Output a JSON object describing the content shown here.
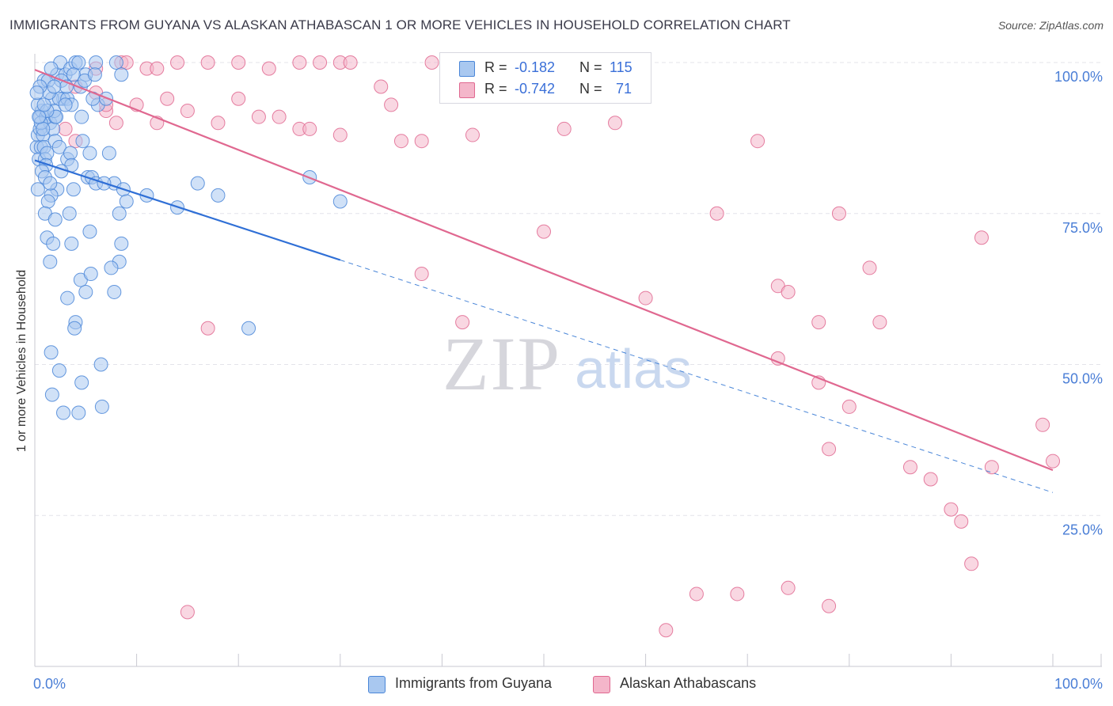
{
  "title": "IMMIGRANTS FROM GUYANA VS ALASKAN ATHABASCAN 1 OR MORE VEHICLES IN HOUSEHOLD CORRELATION CHART",
  "source": "Source: ZipAtlas.com",
  "watermark": {
    "zip": "ZIP",
    "atlas": "atlas"
  },
  "colors": {
    "blue": "#4a86d8",
    "blue_fill": "#a9c8f0",
    "pink": "#e06890",
    "pink_fill": "#f4b6ca",
    "axis_text": "#4a7ed6",
    "grid": "#e3e3ea"
  },
  "legend": {
    "rows": [
      {
        "r_label": "R =",
        "r_value": "-0.182",
        "n_label": "N =",
        "n_value": "115"
      },
      {
        "r_label": "R =",
        "r_value": "-0.742",
        "n_label": "N =",
        "n_value": "71"
      }
    ]
  },
  "bottom_legend": {
    "series1": "Immigrants from Guyana",
    "series2": "Alaskan Athabascans"
  },
  "chart_data": {
    "type": "scatter",
    "title": "IMMIGRANTS FROM GUYANA VS ALASKAN ATHABASCAN 1 OR MORE VEHICLES IN HOUSEHOLD CORRELATION CHART",
    "xlabel": "",
    "ylabel": "1 or more Vehicles in Household",
    "xlim": [
      0,
      100
    ],
    "ylim": [
      0,
      100
    ],
    "x_tick_labels": [
      "0.0%",
      "100.0%"
    ],
    "y_ticks": [
      25,
      50,
      75,
      100
    ],
    "y_tick_labels": [
      "25.0%",
      "50.0%",
      "75.0%",
      "100.0%"
    ],
    "grid": true,
    "series": [
      {
        "name": "Immigrants from Guyana",
        "r": -0.182,
        "n": 115,
        "trend": {
          "x0": 0,
          "y0": 83.8,
          "x1": 30,
          "y1": 67.3,
          "dash_x_end": 100
        },
        "points": [
          [
            0.2,
            86
          ],
          [
            0.3,
            88
          ],
          [
            0.5,
            89
          ],
          [
            0.4,
            84
          ],
          [
            0.6,
            86
          ],
          [
            0.8,
            88
          ],
          [
            0.9,
            86
          ],
          [
            1.0,
            84
          ],
          [
            1.2,
            85
          ],
          [
            0.5,
            91
          ],
          [
            0.7,
            92
          ],
          [
            0.3,
            93
          ],
          [
            1.1,
            91
          ],
          [
            1.5,
            90
          ],
          [
            1.8,
            89
          ],
          [
            2.0,
            91
          ],
          [
            0.9,
            97
          ],
          [
            1.3,
            97
          ],
          [
            2.2,
            98
          ],
          [
            2.5,
            100
          ],
          [
            1.6,
            99
          ],
          [
            3.0,
            98
          ],
          [
            3.5,
            99
          ],
          [
            4.0,
            100
          ],
          [
            4.3,
            100
          ],
          [
            5.0,
            98
          ],
          [
            6.0,
            100
          ],
          [
            8.0,
            100
          ],
          [
            8.5,
            98
          ],
          [
            4.5,
            96
          ],
          [
            2.8,
            94
          ],
          [
            1.7,
            94
          ],
          [
            2.4,
            94
          ],
          [
            3.2,
            94
          ],
          [
            3.6,
            93
          ],
          [
            6.2,
            93
          ],
          [
            5.7,
            94
          ],
          [
            1.9,
            92
          ],
          [
            3.0,
            93
          ],
          [
            4.6,
            91
          ],
          [
            2.1,
            91
          ],
          [
            1.2,
            92
          ],
          [
            0.6,
            90
          ],
          [
            0.8,
            89
          ],
          [
            2.0,
            87
          ],
          [
            2.4,
            86
          ],
          [
            4.7,
            87
          ],
          [
            3.2,
            84
          ],
          [
            3.5,
            85
          ],
          [
            5.4,
            85
          ],
          [
            7.3,
            85
          ],
          [
            1.1,
            83
          ],
          [
            0.7,
            82
          ],
          [
            1.0,
            81
          ],
          [
            3.6,
            83
          ],
          [
            5.2,
            81
          ],
          [
            5.6,
            81
          ],
          [
            2.2,
            79
          ],
          [
            1.6,
            78
          ],
          [
            1.3,
            77
          ],
          [
            3.8,
            79
          ],
          [
            6.0,
            80
          ],
          [
            7.8,
            80
          ],
          [
            8.7,
            79
          ],
          [
            1.0,
            75
          ],
          [
            3.4,
            75
          ],
          [
            8.3,
            75
          ],
          [
            14,
            76
          ],
          [
            16,
            80
          ],
          [
            18,
            78
          ],
          [
            27,
            81
          ],
          [
            30,
            77
          ],
          [
            1.2,
            71
          ],
          [
            1.8,
            70
          ],
          [
            3.6,
            70
          ],
          [
            8.5,
            70
          ],
          [
            1.5,
            67
          ],
          [
            8.3,
            67
          ],
          [
            4.5,
            64
          ],
          [
            5.5,
            65
          ],
          [
            5.0,
            62
          ],
          [
            7.5,
            66
          ],
          [
            7.8,
            62
          ],
          [
            3.2,
            61
          ],
          [
            4.0,
            57
          ],
          [
            3.9,
            56
          ],
          [
            21,
            56
          ],
          [
            1.6,
            52
          ],
          [
            2.4,
            49
          ],
          [
            6.5,
            50
          ],
          [
            1.7,
            45
          ],
          [
            4.6,
            47
          ],
          [
            2.8,
            42
          ],
          [
            4.3,
            42
          ],
          [
            6.6,
            43
          ],
          [
            0.4,
            91
          ],
          [
            0.9,
            93
          ],
          [
            1.4,
            95
          ],
          [
            2.6,
            97
          ],
          [
            3.1,
            96
          ],
          [
            3.8,
            98
          ],
          [
            4.9,
            97
          ],
          [
            5.9,
            98
          ],
          [
            0.3,
            79
          ],
          [
            1.5,
            80
          ],
          [
            2.6,
            82
          ],
          [
            6.8,
            80
          ],
          [
            9.0,
            77
          ],
          [
            11,
            78
          ],
          [
            0.5,
            96
          ],
          [
            1.9,
            96
          ],
          [
            0.2,
            95
          ],
          [
            7.0,
            94
          ],
          [
            2.0,
            74
          ],
          [
            5.4,
            72
          ]
        ]
      },
      {
        "name": "Alaskan Athabascans",
        "r": -0.742,
        "n": 71,
        "trend": {
          "x0": 0,
          "y0": 98.8,
          "x1": 100,
          "y1": 32.5
        },
        "points": [
          [
            6.0,
            99
          ],
          [
            8.5,
            100
          ],
          [
            9.0,
            100
          ],
          [
            11.0,
            99
          ],
          [
            12.0,
            99
          ],
          [
            14.0,
            100
          ],
          [
            17.0,
            100
          ],
          [
            20.0,
            100
          ],
          [
            23.0,
            99
          ],
          [
            26.0,
            100
          ],
          [
            28.0,
            100
          ],
          [
            30.0,
            100
          ],
          [
            31.0,
            100
          ],
          [
            39.0,
            100
          ],
          [
            4.0,
            96
          ],
          [
            6.0,
            95
          ],
          [
            7.0,
            92
          ],
          [
            10.0,
            93
          ],
          [
            13.0,
            94
          ],
          [
            15.0,
            92
          ],
          [
            20.0,
            94
          ],
          [
            24.0,
            91
          ],
          [
            26.0,
            89
          ],
          [
            27.0,
            89
          ],
          [
            30.0,
            88
          ],
          [
            36.0,
            87
          ],
          [
            38.0,
            87
          ],
          [
            43.0,
            88
          ],
          [
            52.0,
            89
          ],
          [
            57.0,
            90
          ],
          [
            71.0,
            87
          ],
          [
            7.0,
            93
          ],
          [
            8.0,
            90
          ],
          [
            3.0,
            89
          ],
          [
            4.0,
            87
          ],
          [
            12.0,
            90
          ],
          [
            18.0,
            90
          ],
          [
            22.0,
            91
          ],
          [
            35.0,
            93
          ],
          [
            67.0,
            75
          ],
          [
            79.0,
            75
          ],
          [
            93.0,
            71
          ],
          [
            50.0,
            72
          ],
          [
            38.0,
            65
          ],
          [
            60.0,
            61
          ],
          [
            73.0,
            63
          ],
          [
            74.0,
            62
          ],
          [
            82.0,
            66
          ],
          [
            77.0,
            57
          ],
          [
            83.0,
            57
          ],
          [
            42.0,
            57
          ],
          [
            73.0,
            51
          ],
          [
            77.0,
            47
          ],
          [
            80.0,
            43
          ],
          [
            78.0,
            36
          ],
          [
            86.0,
            33
          ],
          [
            88.0,
            31
          ],
          [
            94.0,
            33
          ],
          [
            99.0,
            40
          ],
          [
            100.0,
            34
          ],
          [
            90.0,
            26
          ],
          [
            91.0,
            24
          ],
          [
            92.0,
            17
          ],
          [
            65.0,
            12
          ],
          [
            69.0,
            12
          ],
          [
            74.0,
            13
          ],
          [
            78.0,
            10
          ],
          [
            62.0,
            6
          ],
          [
            17.0,
            56
          ],
          [
            15.0,
            9
          ],
          [
            34.0,
            96
          ]
        ]
      }
    ]
  }
}
